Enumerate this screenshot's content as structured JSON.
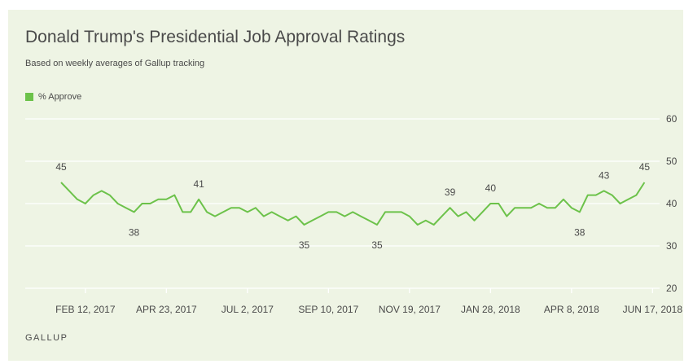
{
  "title": "Donald Trump's Presidential Job Approval Ratings",
  "subtitle": "Based on weekly averages of Gallup tracking",
  "footer": "GALLUP",
  "colors": {
    "background": "#eef4e4",
    "series": "#6cc24a",
    "text": "#4a4a4a",
    "grid": "#ffffff"
  },
  "chart_data": {
    "type": "line",
    "title": "Donald Trump's Presidential Job Approval Ratings",
    "subtitle": "Based on weekly averages of Gallup tracking",
    "xlabel": "",
    "ylabel": "",
    "ylim": [
      20,
      60
    ],
    "yticks": [
      20,
      30,
      40,
      50,
      60
    ],
    "grid": true,
    "legend_position": "top-left",
    "x_tick_labels": [
      "FEB 12, 2017",
      "APR 23, 2017",
      "JUL 2, 2017",
      "SEP 10, 2017",
      "NOV 19, 2017",
      "JAN 28, 2018",
      "APR 8, 2018",
      "JUN 17, 2018"
    ],
    "x_tick_indices": [
      3,
      13,
      23,
      33,
      43,
      53,
      63,
      73
    ],
    "series": [
      {
        "name": "% Approve",
        "values": [
          45,
          43,
          41,
          40,
          42,
          43,
          42,
          40,
          39,
          38,
          40,
          40,
          41,
          41,
          42,
          38,
          38,
          41,
          38,
          37,
          38,
          39,
          39,
          38,
          39,
          37,
          38,
          37,
          36,
          37,
          35,
          36,
          37,
          38,
          38,
          37,
          38,
          37,
          36,
          35,
          38,
          38,
          38,
          37,
          35,
          36,
          35,
          37,
          39,
          37,
          38,
          36,
          38,
          40,
          40,
          37,
          39,
          39,
          39,
          40,
          39,
          39,
          41,
          39,
          38,
          42,
          42,
          43,
          42,
          40,
          41,
          42,
          45
        ]
      }
    ],
    "data_labels": [
      {
        "index": 0,
        "value": 45,
        "position": "above"
      },
      {
        "index": 9,
        "value": 38,
        "position": "below"
      },
      {
        "index": 17,
        "value": 41,
        "position": "above"
      },
      {
        "index": 30,
        "value": 35,
        "position": "below"
      },
      {
        "index": 39,
        "value": 35,
        "position": "below"
      },
      {
        "index": 48,
        "value": 39,
        "position": "above"
      },
      {
        "index": 53,
        "value": 40,
        "position": "above"
      },
      {
        "index": 64,
        "value": 38,
        "position": "below"
      },
      {
        "index": 67,
        "value": 43,
        "position": "above"
      },
      {
        "index": 72,
        "value": 45,
        "position": "above"
      }
    ]
  }
}
